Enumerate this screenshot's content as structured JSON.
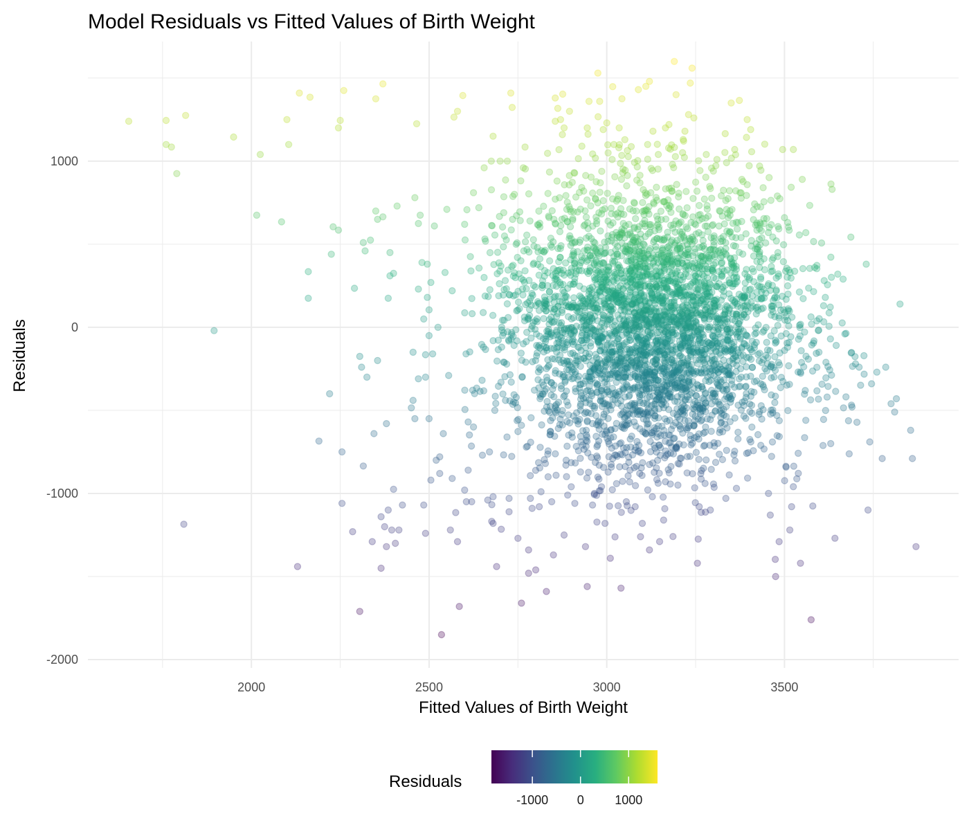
{
  "chart_data": {
    "type": "scatter",
    "title": "Model Residuals vs Fitted Values of Birth Weight",
    "xlabel": "Fitted Values of Birth Weight",
    "ylabel": "Residuals",
    "xlim": [
      1540,
      3990
    ],
    "ylim": [
      -2050,
      1720
    ],
    "x_ticks": [
      2000,
      2500,
      3000,
      3500
    ],
    "y_ticks": [
      -2000,
      -1000,
      0,
      1000
    ],
    "grid": true,
    "point_alpha": 0.3,
    "legend": {
      "title": "Residuals",
      "position": "bottom",
      "type": "colorbar",
      "colormap": "viridis",
      "range": [
        -1850,
        1600
      ],
      "ticks": [
        -1000,
        0,
        1000
      ]
    },
    "colors": [
      "#440154",
      "#472d7b",
      "#3b528b",
      "#2c728e",
      "#21918c",
      "#28ae80",
      "#5ec962",
      "#addc30",
      "#fde725"
    ],
    "cluster": {
      "n": 3800,
      "x_center": 3130,
      "x_sd": 200,
      "y_center": 0,
      "y_sd": 420,
      "note_visible_range": "x from about 1640 to 3870; y from about -1850 to 1600"
    },
    "series": [
      {
        "points": [
          [
            1655,
            1240
          ],
          [
            1760,
            1245
          ],
          [
            1760,
            1100
          ],
          [
            1775,
            1085
          ],
          [
            1790,
            925
          ],
          [
            1815,
            1275
          ],
          [
            1810,
            -1185
          ],
          [
            1895,
            -20
          ],
          [
            1950,
            1145
          ],
          [
            2015,
            675
          ],
          [
            2025,
            1040
          ],
          [
            2085,
            635
          ],
          [
            2100,
            1250
          ],
          [
            2105,
            1100
          ],
          [
            2130,
            -1440
          ],
          [
            2135,
            1410
          ],
          [
            2165,
            1385
          ],
          [
            2160,
            335
          ],
          [
            2160,
            175
          ],
          [
            2190,
            -685
          ],
          [
            2220,
            -400
          ],
          [
            2225,
            440
          ],
          [
            2230,
            605
          ],
          [
            2245,
            1200
          ],
          [
            2245,
            585
          ],
          [
            2250,
            1245
          ],
          [
            2255,
            -750
          ],
          [
            2255,
            -1060
          ],
          [
            2260,
            1425
          ],
          [
            2285,
            -1230
          ],
          [
            2290,
            235
          ],
          [
            2305,
            -1710
          ],
          [
            2305,
            -175
          ],
          [
            2310,
            -240
          ],
          [
            2315,
            -835
          ],
          [
            2315,
            510
          ],
          [
            2320,
            460
          ],
          [
            2325,
            -300
          ],
          [
            2335,
            525
          ],
          [
            2340,
            -1290
          ],
          [
            2345,
            -640
          ],
          [
            2350,
            1375
          ],
          [
            2350,
            700
          ],
          [
            2355,
            650
          ],
          [
            2355,
            -200
          ],
          [
            2365,
            -1450
          ],
          [
            2365,
            -1140
          ],
          [
            2370,
            1465
          ],
          [
            2370,
            665
          ],
          [
            2375,
            -1200
          ],
          [
            2380,
            -1320
          ],
          [
            2380,
            -580
          ],
          [
            2385,
            -1100
          ],
          [
            2385,
            175
          ],
          [
            2390,
            450
          ],
          [
            2390,
            310
          ],
          [
            2395,
            -1220
          ],
          [
            2400,
            -975
          ],
          [
            2400,
            325
          ],
          [
            2405,
            -1300
          ],
          [
            2410,
            730
          ],
          [
            2415,
            -1220
          ],
          [
            2425,
            -1070
          ],
          [
            2450,
            -485
          ],
          [
            2455,
            -440
          ],
          [
            2455,
            -150
          ],
          [
            2460,
            780
          ],
          [
            2460,
            -550
          ],
          [
            2465,
            1225
          ],
          [
            2470,
            625
          ],
          [
            2470,
            230
          ],
          [
            2470,
            -310
          ],
          [
            2475,
            675
          ],
          [
            2480,
            390
          ],
          [
            2485,
            50
          ],
          [
            2485,
            -1070
          ],
          [
            2490,
            -300
          ],
          [
            2490,
            -1240
          ],
          [
            2490,
            -165
          ],
          [
            2495,
            380
          ],
          [
            2495,
            180
          ],
          [
            2500,
            105
          ],
          [
            2500,
            -550
          ],
          [
            2500,
            -50
          ],
          [
            2505,
            270
          ],
          [
            2505,
            -920
          ],
          [
            2510,
            -160
          ],
          [
            2515,
            610
          ],
          [
            2520,
            -800
          ],
          [
            2525,
            0
          ],
          [
            2530,
            -780
          ],
          [
            2530,
            -880
          ],
          [
            2535,
            -1850
          ],
          [
            2540,
            -640
          ],
          [
            2545,
            330
          ],
          [
            2550,
            710
          ],
          [
            2555,
            -290
          ],
          [
            2560,
            -1220
          ],
          [
            2565,
            -910
          ],
          [
            2565,
            220
          ],
          [
            2570,
            1265
          ],
          [
            2575,
            -1115
          ],
          [
            2580,
            -1290
          ],
          [
            2580,
            1300
          ],
          [
            2585,
            -1680
          ],
          [
            2595,
            1395
          ],
          [
            2600,
            -980
          ],
          [
            2600,
            620
          ],
          [
            2605,
            -1050
          ],
          [
            2610,
            -860
          ],
          [
            2610,
            -570
          ],
          [
            2620,
            -1050
          ],
          [
            2625,
            810
          ],
          [
            2625,
            -600
          ],
          [
            2640,
            720
          ],
          [
            2650,
            -770
          ],
          [
            2655,
            960
          ],
          [
            2665,
            -1040
          ],
          [
            2670,
            -750
          ],
          [
            2675,
            1000
          ],
          [
            2680,
            -1020
          ],
          [
            2680,
            -1180
          ],
          [
            2680,
            1150
          ],
          [
            2685,
            -500
          ],
          [
            2690,
            -1440
          ],
          [
            2700,
            1000
          ],
          [
            2710,
            690
          ],
          [
            2715,
            -440
          ],
          [
            2720,
            1000
          ],
          [
            2725,
            -1030
          ],
          [
            2725,
            -1110
          ],
          [
            2730,
            1410
          ],
          [
            2735,
            650
          ],
          [
            2740,
            800
          ],
          [
            2745,
            500
          ],
          [
            2750,
            -1270
          ],
          [
            2760,
            -590
          ],
          [
            2760,
            -1660
          ],
          [
            2765,
            960
          ],
          [
            2770,
            1085
          ],
          [
            2770,
            340
          ],
          [
            2780,
            -1340
          ],
          [
            2780,
            -1480
          ],
          [
            2785,
            -1030
          ],
          [
            2790,
            -1090
          ],
          [
            2800,
            -1460
          ],
          [
            2805,
            480
          ],
          [
            2810,
            -1080
          ],
          [
            2815,
            -990
          ],
          [
            2830,
            -1590
          ],
          [
            2835,
            -900
          ],
          [
            2845,
            -1050
          ],
          [
            2850,
            -1370
          ],
          [
            2855,
            1240
          ],
          [
            2855,
            1380
          ],
          [
            2860,
            880
          ],
          [
            2870,
            1250
          ],
          [
            2875,
            1160
          ],
          [
            2880,
            1200
          ],
          [
            2880,
            -1250
          ],
          [
            2885,
            -830
          ],
          [
            2890,
            -1010
          ],
          [
            2895,
            1300
          ],
          [
            2900,
            -960
          ],
          [
            2910,
            -1060
          ],
          [
            2920,
            1015
          ],
          [
            2930,
            1090
          ],
          [
            2935,
            820
          ],
          [
            2940,
            -1320
          ],
          [
            2945,
            -1560
          ],
          [
            2945,
            1200
          ],
          [
            2950,
            1360
          ],
          [
            2960,
            -1070
          ],
          [
            2965,
            -1000
          ],
          [
            2975,
            1530
          ],
          [
            2980,
            1360
          ],
          [
            2985,
            -960
          ],
          [
            2990,
            1190
          ],
          [
            2995,
            -1180
          ],
          [
            3000,
            1230
          ],
          [
            3010,
            -1390
          ],
          [
            3015,
            1010
          ],
          [
            3020,
            1100
          ],
          [
            3035,
            1200
          ],
          [
            3040,
            -1570
          ],
          [
            3045,
            930
          ],
          [
            3055,
            -1050
          ],
          [
            3080,
            -1080
          ],
          [
            3095,
            -1260
          ],
          [
            3100,
            -1180
          ],
          [
            3110,
            1450
          ],
          [
            3115,
            1100
          ],
          [
            3120,
            1480
          ],
          [
            3120,
            -1340
          ],
          [
            3130,
            1180
          ],
          [
            3145,
            1040
          ],
          [
            3160,
            -1160
          ],
          [
            3165,
            1200
          ],
          [
            3175,
            1220
          ],
          [
            3190,
            1600
          ],
          [
            3195,
            1400
          ],
          [
            3200,
            -950
          ],
          [
            3215,
            1130
          ],
          [
            3220,
            1180
          ],
          [
            3230,
            1280
          ],
          [
            3235,
            1470
          ],
          [
            3240,
            1560
          ],
          [
            3245,
            1260
          ],
          [
            3255,
            -1420
          ],
          [
            3260,
            -1080
          ],
          [
            3280,
            1040
          ],
          [
            3300,
            940
          ],
          [
            3310,
            1010
          ],
          [
            3335,
            -1030
          ],
          [
            3350,
            1350
          ],
          [
            3360,
            1070
          ],
          [
            3375,
            810
          ],
          [
            3380,
            890
          ],
          [
            3395,
            1250
          ],
          [
            3405,
            1190
          ],
          [
            3430,
            970
          ],
          [
            3440,
            840
          ],
          [
            3455,
            -1000
          ],
          [
            3460,
            -1130
          ],
          [
            3475,
            -1500
          ],
          [
            3480,
            790
          ],
          [
            3485,
            -1290
          ],
          [
            3495,
            1070
          ],
          [
            3500,
            660
          ],
          [
            3510,
            200
          ],
          [
            3515,
            -1220
          ],
          [
            3520,
            -1080
          ],
          [
            3525,
            1070
          ],
          [
            3545,
            -1420
          ],
          [
            3550,
            890
          ],
          [
            3560,
            570
          ],
          [
            3560,
            -560
          ],
          [
            3575,
            -1760
          ],
          [
            3585,
            360
          ],
          [
            3610,
            130
          ],
          [
            3615,
            180
          ],
          [
            3620,
            -420
          ],
          [
            3630,
            -700
          ],
          [
            3650,
            320
          ],
          [
            3665,
            290
          ],
          [
            3670,
            -40
          ],
          [
            3690,
            -480
          ],
          [
            3700,
            -220
          ],
          [
            3710,
            -240
          ],
          [
            3730,
            380
          ],
          [
            3735,
            -1100
          ],
          [
            3740,
            -690
          ],
          [
            3745,
            -340
          ],
          [
            3760,
            -270
          ],
          [
            3775,
            -790
          ],
          [
            3785,
            -240
          ],
          [
            3800,
            -460
          ],
          [
            3810,
            -510
          ],
          [
            3815,
            -430
          ],
          [
            3825,
            140
          ],
          [
            3855,
            -620
          ],
          [
            3860,
            -790
          ],
          [
            3870,
            -1320
          ]
        ]
      }
    ]
  }
}
